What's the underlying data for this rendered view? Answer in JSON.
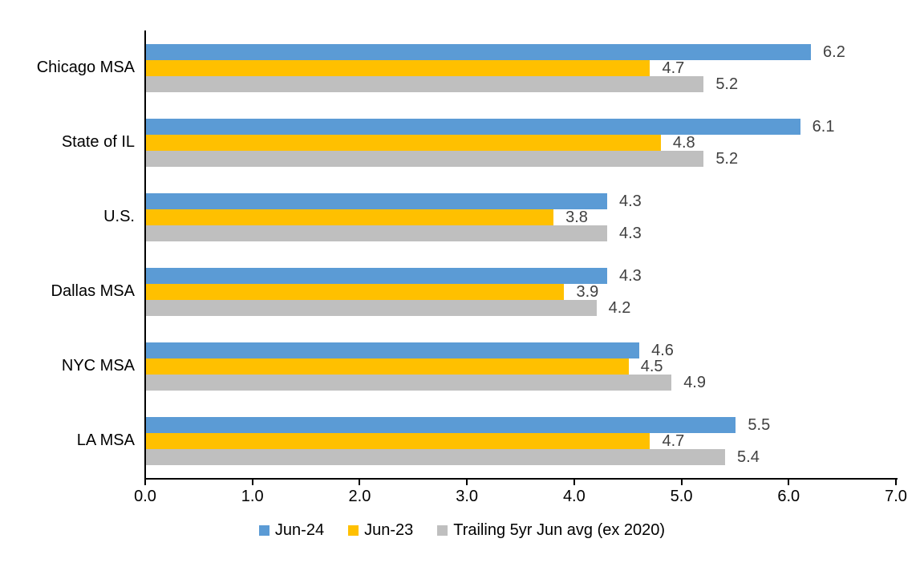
{
  "chart_data": {
    "type": "bar",
    "orientation": "horizontal",
    "categories": [
      "Chicago MSA",
      "State of IL",
      "U.S.",
      "Dallas MSA",
      "NYC MSA",
      "LA MSA"
    ],
    "series": [
      {
        "name": "Jun-24",
        "color": "#5B9BD5",
        "values": [
          6.2,
          6.1,
          4.3,
          4.3,
          4.6,
          5.5
        ]
      },
      {
        "name": "Jun-23",
        "color": "#FFC000",
        "values": [
          4.7,
          4.8,
          3.8,
          3.9,
          4.5,
          4.7
        ]
      },
      {
        "name": "Trailing 5yr Jun avg (ex 2020)",
        "color": "#BFBFBF",
        "values": [
          5.2,
          5.2,
          4.3,
          4.2,
          4.9,
          5.4
        ]
      }
    ],
    "xlim": [
      0,
      7
    ],
    "x_tick_labels": [
      "0.0",
      "1.0",
      "2.0",
      "3.0",
      "4.0",
      "5.0",
      "6.0",
      "7.0"
    ],
    "value_labels_shown": true,
    "value_label_decimals": 1,
    "legend_position": "bottom",
    "grid": false
  },
  "styles": {
    "background": "#FFFFFF",
    "axis_color": "#000000",
    "category_label_color": "#000000",
    "tick_label_color": "#000000",
    "value_label_color": "#404040",
    "legend_text_color": "#000000"
  }
}
